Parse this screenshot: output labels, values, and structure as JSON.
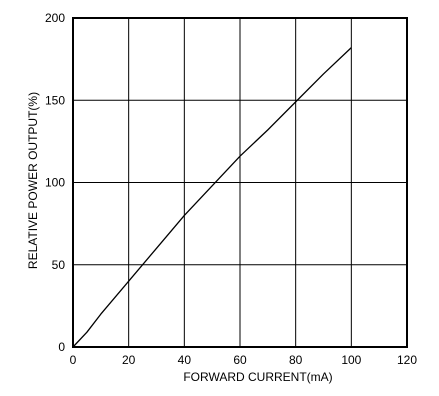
{
  "chart_data": {
    "type": "line",
    "title": "",
    "xlabel": "FORWARD CURRENT(mA)",
    "ylabel": "RELATIVE POWER OUTPUT(%)",
    "xlim": [
      0,
      120
    ],
    "ylim": [
      0,
      200
    ],
    "xticks": [
      0,
      20,
      40,
      60,
      80,
      100,
      120
    ],
    "yticks": [
      0,
      50,
      100,
      150,
      200
    ],
    "xtick_labels": [
      "0",
      "20",
      "40",
      "60",
      "80",
      "100",
      "120"
    ],
    "ytick_labels": [
      "0",
      "50",
      "100",
      "150",
      "200"
    ],
    "grid": true,
    "legend": "none",
    "series": [
      {
        "x": [
          0,
          5,
          10,
          20,
          30,
          40,
          50,
          60,
          70,
          80,
          90,
          100
        ],
        "y": [
          0,
          9,
          20,
          40,
          60,
          80,
          98,
          116,
          132,
          149,
          166,
          182
        ]
      }
    ],
    "colors": {
      "line": "#000000",
      "grid": "#000000",
      "frame": "#000000"
    }
  }
}
